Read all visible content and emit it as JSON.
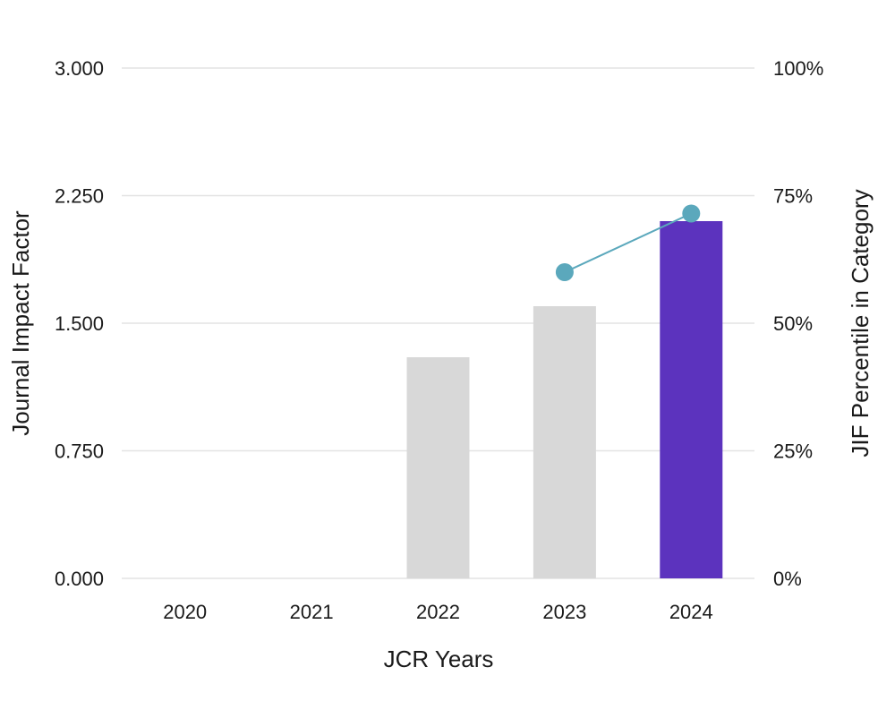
{
  "chart_data": {
    "type": "bar",
    "categories": [
      "2020",
      "2021",
      "2022",
      "2023",
      "2024"
    ],
    "series": [
      {
        "name": "Journal Impact Factor",
        "kind": "bar",
        "axis": "left",
        "values": [
          null,
          null,
          1.3,
          1.6,
          2.1
        ],
        "colors": [
          "#d8d8d8",
          "#d8d8d8",
          "#d8d8d8",
          "#d8d8d8",
          "#5c33be"
        ]
      },
      {
        "name": "JIF Percentile in Category",
        "kind": "line",
        "axis": "right",
        "values": [
          null,
          null,
          null,
          60,
          71.5
        ],
        "color": "#5ba8bc"
      }
    ],
    "xlabel": "JCR Years",
    "ylabel": "Journal Impact Factor",
    "y2label": "JIF Percentile in Category",
    "ylim": [
      0,
      3
    ],
    "y2lim": [
      0,
      100
    ],
    "yticks": [
      "0.000",
      "0.750",
      "1.500",
      "2.250",
      "3.000"
    ],
    "yticks_values": [
      0,
      0.75,
      1.5,
      2.25,
      3
    ],
    "y2ticks": [
      "0%",
      "25%",
      "50%",
      "75%",
      "100%"
    ],
    "y2ticks_values": [
      0,
      25,
      50,
      75,
      100
    ],
    "grid": true
  }
}
